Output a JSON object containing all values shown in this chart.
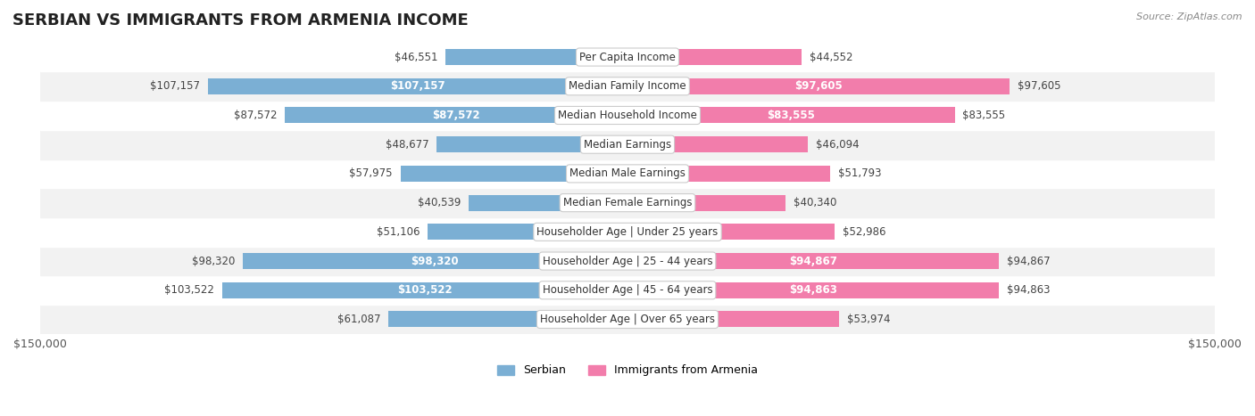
{
  "title": "SERBIAN VS IMMIGRANTS FROM ARMENIA INCOME",
  "source": "Source: ZipAtlas.com",
  "categories": [
    "Per Capita Income",
    "Median Family Income",
    "Median Household Income",
    "Median Earnings",
    "Median Male Earnings",
    "Median Female Earnings",
    "Householder Age | Under 25 years",
    "Householder Age | 25 - 44 years",
    "Householder Age | 45 - 64 years",
    "Householder Age | Over 65 years"
  ],
  "serbian_values": [
    46551,
    107157,
    87572,
    48677,
    57975,
    40539,
    51106,
    98320,
    103522,
    61087
  ],
  "armenia_values": [
    44552,
    97605,
    83555,
    46094,
    51793,
    40340,
    52986,
    94867,
    94863,
    53974
  ],
  "serbian_color": "#7bafd4",
  "armenia_color": "#f27dab",
  "serbian_label_color_threshold": 70000,
  "armenia_label_color_threshold": 70000,
  "max_value": 150000,
  "bar_height": 0.55,
  "background_color": "#ffffff",
  "row_bg_color": "#f2f2f2",
  "row_bg_color_alt": "#ffffff",
  "label_fontsize": 8.5,
  "category_fontsize": 8.5,
  "title_fontsize": 13
}
